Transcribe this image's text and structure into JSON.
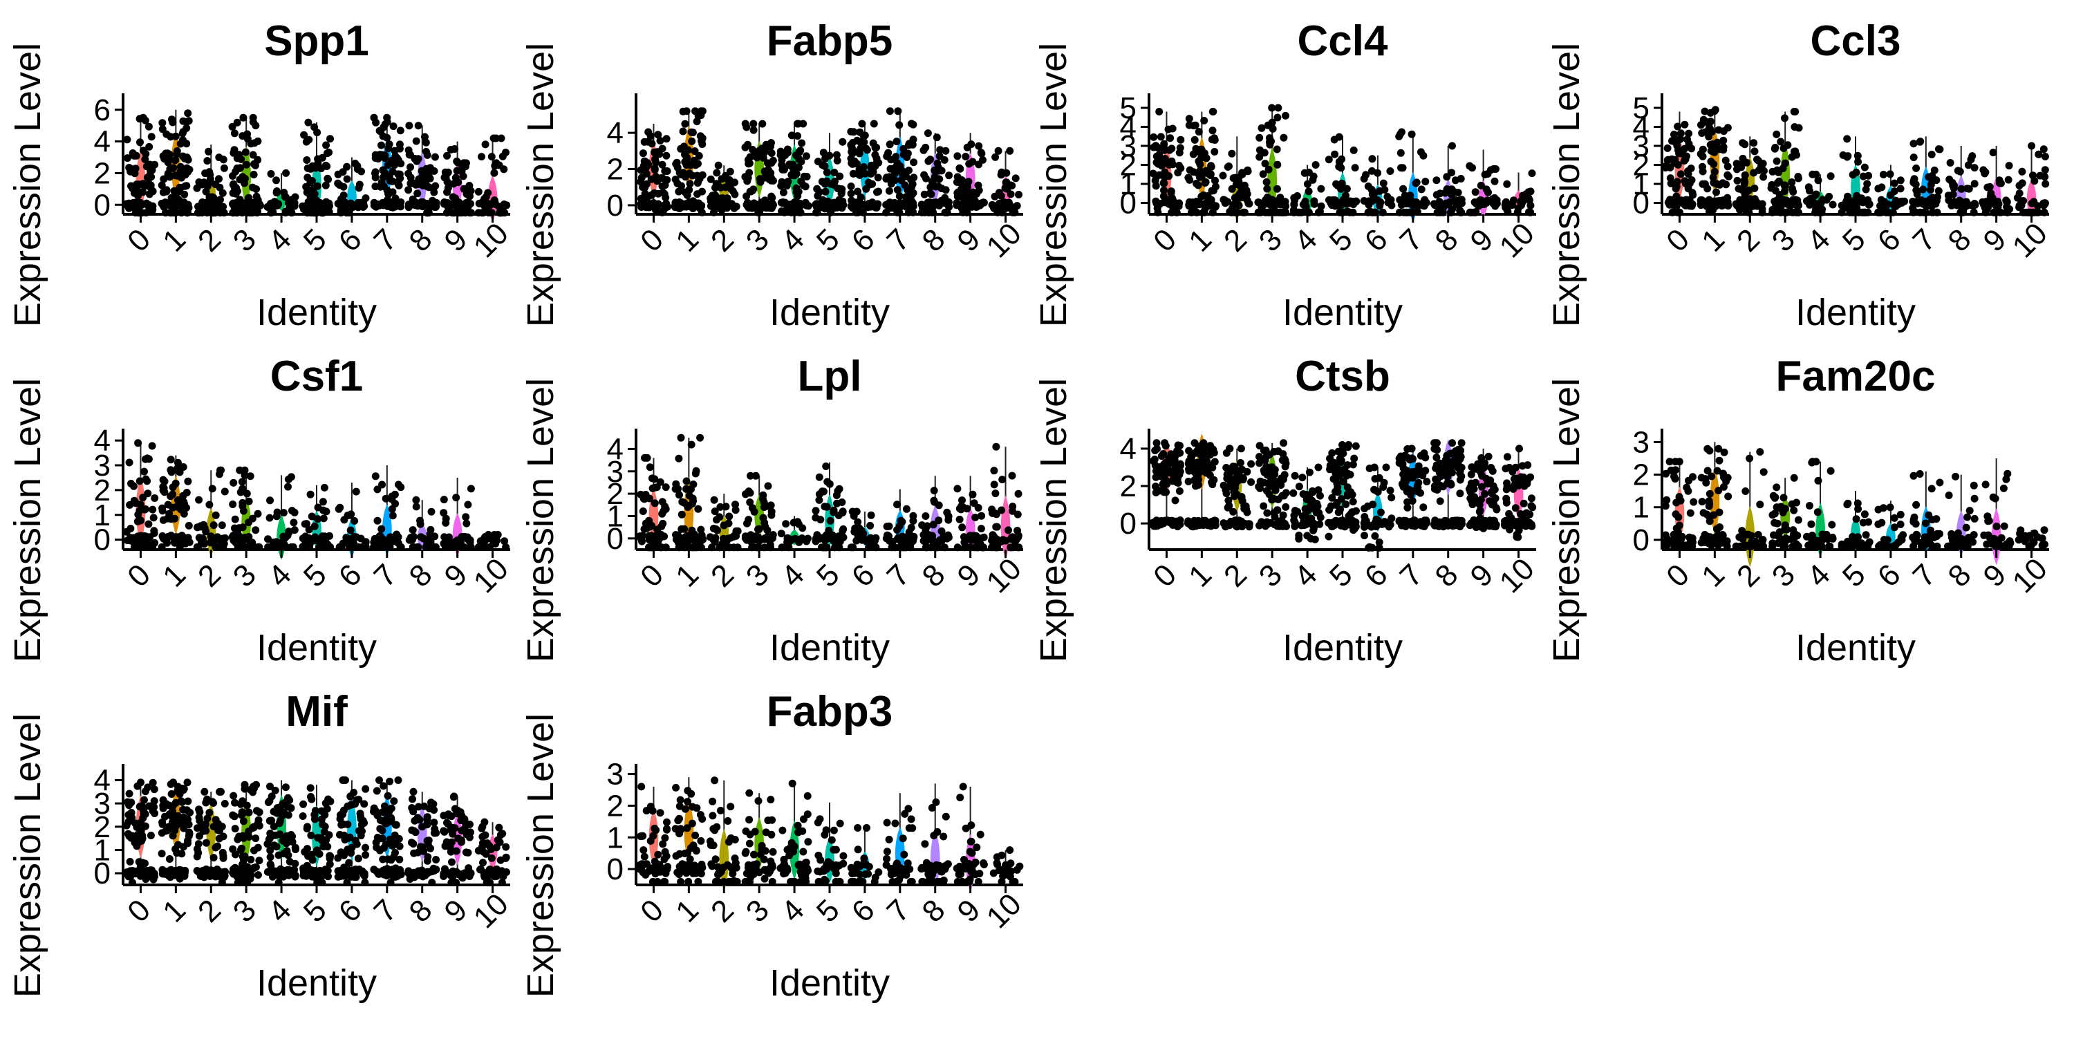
{
  "figure": {
    "ylabel": "Expression Level",
    "xlabel": "Identity",
    "categories": [
      "0",
      "1",
      "2",
      "3",
      "4",
      "5",
      "6",
      "7",
      "8",
      "9",
      "10"
    ],
    "cluster_colors": [
      "#F8766D",
      "#DB8E00",
      "#AEA200",
      "#64B200",
      "#00BD5C",
      "#00C1A7",
      "#00BADE",
      "#00A6FF",
      "#B385FF",
      "#EF67EB",
      "#FF63B6"
    ]
  },
  "chart_data": [
    {
      "type": "violin",
      "title": "Spp1",
      "ylim": [
        -0.6,
        6.6
      ],
      "yticks": [
        0,
        2,
        4,
        6
      ],
      "xlabel": "Identity",
      "ylabel": "Expression Level",
      "categories": [
        "0",
        "1",
        "2",
        "3",
        "4",
        "5",
        "6",
        "7",
        "8",
        "9",
        "10"
      ],
      "cluster_max": [
        5.5,
        6,
        3.8,
        5.5,
        2,
        5.2,
        3,
        5.5,
        5,
        4,
        4.2
      ],
      "cluster_mean": [
        1.5,
        2.5,
        0.6,
        1.8,
        0.3,
        1.2,
        0.5,
        2.3,
        1.6,
        1.2,
        0.4
      ]
    },
    {
      "type": "violin",
      "title": "Fabp5",
      "ylim": [
        -0.5,
        5.8
      ],
      "yticks": [
        0,
        2,
        4
      ],
      "xlabel": "Identity",
      "ylabel": "Expression Level",
      "categories": [
        "0",
        "1",
        "2",
        "3",
        "4",
        "5",
        "6",
        "7",
        "8",
        "9",
        "10"
      ],
      "cluster_max": [
        4.5,
        5.2,
        2.2,
        4.5,
        4.5,
        4,
        4.5,
        5.2,
        4,
        4,
        3
      ],
      "cluster_mean": [
        2,
        2.6,
        0.8,
        2,
        1.8,
        1.3,
        2,
        2,
        1.5,
        1.5,
        0.6
      ]
    },
    {
      "type": "violin",
      "title": "Ccl4",
      "ylim": [
        -0.6,
        5.4
      ],
      "yticks": [
        0,
        1,
        2,
        3,
        4,
        5
      ],
      "xlabel": "Identity",
      "ylabel": "Expression Level",
      "categories": [
        "0",
        "1",
        "2",
        "3",
        "4",
        "5",
        "6",
        "7",
        "8",
        "9",
        "10"
      ],
      "cluster_max": [
        4.8,
        4.8,
        3.5,
        5,
        2,
        3.5,
        2.5,
        3.8,
        3,
        2.8,
        1.6
      ],
      "cluster_mean": [
        1.5,
        1.8,
        0.3,
        1.2,
        0.1,
        0.4,
        0.1,
        0.3,
        0.2,
        0.2,
        0.1
      ]
    },
    {
      "type": "violin",
      "title": "Ccl3",
      "ylim": [
        -0.6,
        5.4
      ],
      "yticks": [
        0,
        1,
        2,
        3,
        4,
        5
      ],
      "xlabel": "Identity",
      "ylabel": "Expression Level",
      "categories": [
        "0",
        "1",
        "2",
        "3",
        "4",
        "5",
        "6",
        "7",
        "8",
        "9",
        "10"
      ],
      "cluster_max": [
        4.8,
        4.9,
        3.5,
        4.8,
        1.5,
        3.5,
        2,
        3.5,
        3,
        3,
        3
      ],
      "cluster_mean": [
        1.8,
        2.2,
        1.2,
        1.5,
        0.1,
        0.8,
        0.2,
        0.7,
        0.4,
        0.3,
        0.2
      ]
    },
    {
      "type": "violin",
      "title": "Csf1",
      "ylim": [
        -0.4,
        4.2
      ],
      "yticks": [
        0,
        1,
        2,
        3,
        4
      ],
      "xlabel": "Identity",
      "ylabel": "Expression Level",
      "categories": [
        "0",
        "1",
        "2",
        "3",
        "4",
        "5",
        "6",
        "7",
        "8",
        "9",
        "10"
      ],
      "cluster_max": [
        3.9,
        3.4,
        2.8,
        2.8,
        2.6,
        2.2,
        2.3,
        3,
        1.6,
        2.5,
        0.2
      ],
      "cluster_mean": [
        1.2,
        1.4,
        0.3,
        0.7,
        0.1,
        0.4,
        0.1,
        0.4,
        0.1,
        0.2,
        0
      ]
    },
    {
      "type": "violin",
      "title": "Lpl",
      "ylim": [
        -0.5,
        4.6
      ],
      "yticks": [
        0,
        1,
        2,
        3,
        4
      ],
      "xlabel": "Identity",
      "ylabel": "Expression Level",
      "categories": [
        "0",
        "1",
        "2",
        "3",
        "4",
        "5",
        "6",
        "7",
        "8",
        "9",
        "10"
      ],
      "cluster_max": [
        3.6,
        4.5,
        2,
        2.8,
        1,
        3.4,
        1.2,
        2.2,
        2.8,
        2.8,
        4.1
      ],
      "cluster_mean": [
        1,
        1.2,
        0.3,
        1,
        0.05,
        0.8,
        0.1,
        0.5,
        0.5,
        0.4,
        0.5
      ]
    },
    {
      "type": "violin",
      "title": "Ctsb",
      "ylim": [
        -1.4,
        4.7
      ],
      "yticks": [
        0,
        2,
        4
      ],
      "xlabel": "Identity",
      "ylabel": "Expression Level",
      "categories": [
        "0",
        "1",
        "2",
        "3",
        "4",
        "5",
        "6",
        "7",
        "8",
        "9",
        "10"
      ],
      "cluster_max": [
        4.3,
        4.3,
        4,
        4.3,
        3,
        4.2,
        3,
        4,
        4.3,
        4,
        4
      ],
      "cluster_mean": [
        3,
        3.3,
        2,
        2.3,
        0.8,
        2.2,
        0.6,
        2.4,
        3,
        1.8,
        1.6
      ]
    },
    {
      "type": "violin",
      "title": "Fam20c",
      "ylim": [
        -0.3,
        3.2
      ],
      "yticks": [
        0,
        1,
        2,
        3
      ],
      "xlabel": "Identity",
      "ylabel": "Expression Level",
      "categories": [
        "0",
        "1",
        "2",
        "3",
        "4",
        "5",
        "6",
        "7",
        "8",
        "9",
        "10"
      ],
      "cluster_max": [
        2.4,
        3,
        2.7,
        1.9,
        2.4,
        1.5,
        1.2,
        2.1,
        2,
        2.5,
        0.3
      ],
      "cluster_mean": [
        0.8,
        1.2,
        0.1,
        0.7,
        0.3,
        0.2,
        0.1,
        0.3,
        0.2,
        0.1,
        0
      ]
    },
    {
      "type": "violin",
      "title": "Mif",
      "ylim": [
        -0.5,
        4.4
      ],
      "yticks": [
        0,
        1,
        2,
        3,
        4
      ],
      "xlabel": "Identity",
      "ylabel": "Expression Level",
      "categories": [
        "0",
        "1",
        "2",
        "3",
        "4",
        "5",
        "6",
        "7",
        "8",
        "9",
        "10"
      ],
      "cluster_max": [
        3.9,
        3.9,
        3.5,
        3.8,
        4,
        3.8,
        4,
        4,
        3.5,
        3.3,
        2.2
      ],
      "cluster_mean": [
        2,
        2.3,
        1.8,
        1.8,
        2,
        1.6,
        1.9,
        2,
        1.7,
        1.5,
        0.9
      ]
    },
    {
      "type": "violin",
      "title": "Fabp3",
      "ylim": [
        -0.5,
        3.1
      ],
      "yticks": [
        0,
        1,
        2,
        3
      ],
      "xlabel": "Identity",
      "ylabel": "Expression Level",
      "categories": [
        "0",
        "1",
        "2",
        "3",
        "4",
        "5",
        "6",
        "7",
        "8",
        "9",
        "10"
      ],
      "cluster_max": [
        2.6,
        2.9,
        2.8,
        2.4,
        2.7,
        2.1,
        1.3,
        2.4,
        2.7,
        2.6,
        0.6
      ],
      "cluster_mean": [
        1,
        1.2,
        0.3,
        0.8,
        0.6,
        0.3,
        0.1,
        0.5,
        0.3,
        0.2,
        0
      ]
    }
  ]
}
